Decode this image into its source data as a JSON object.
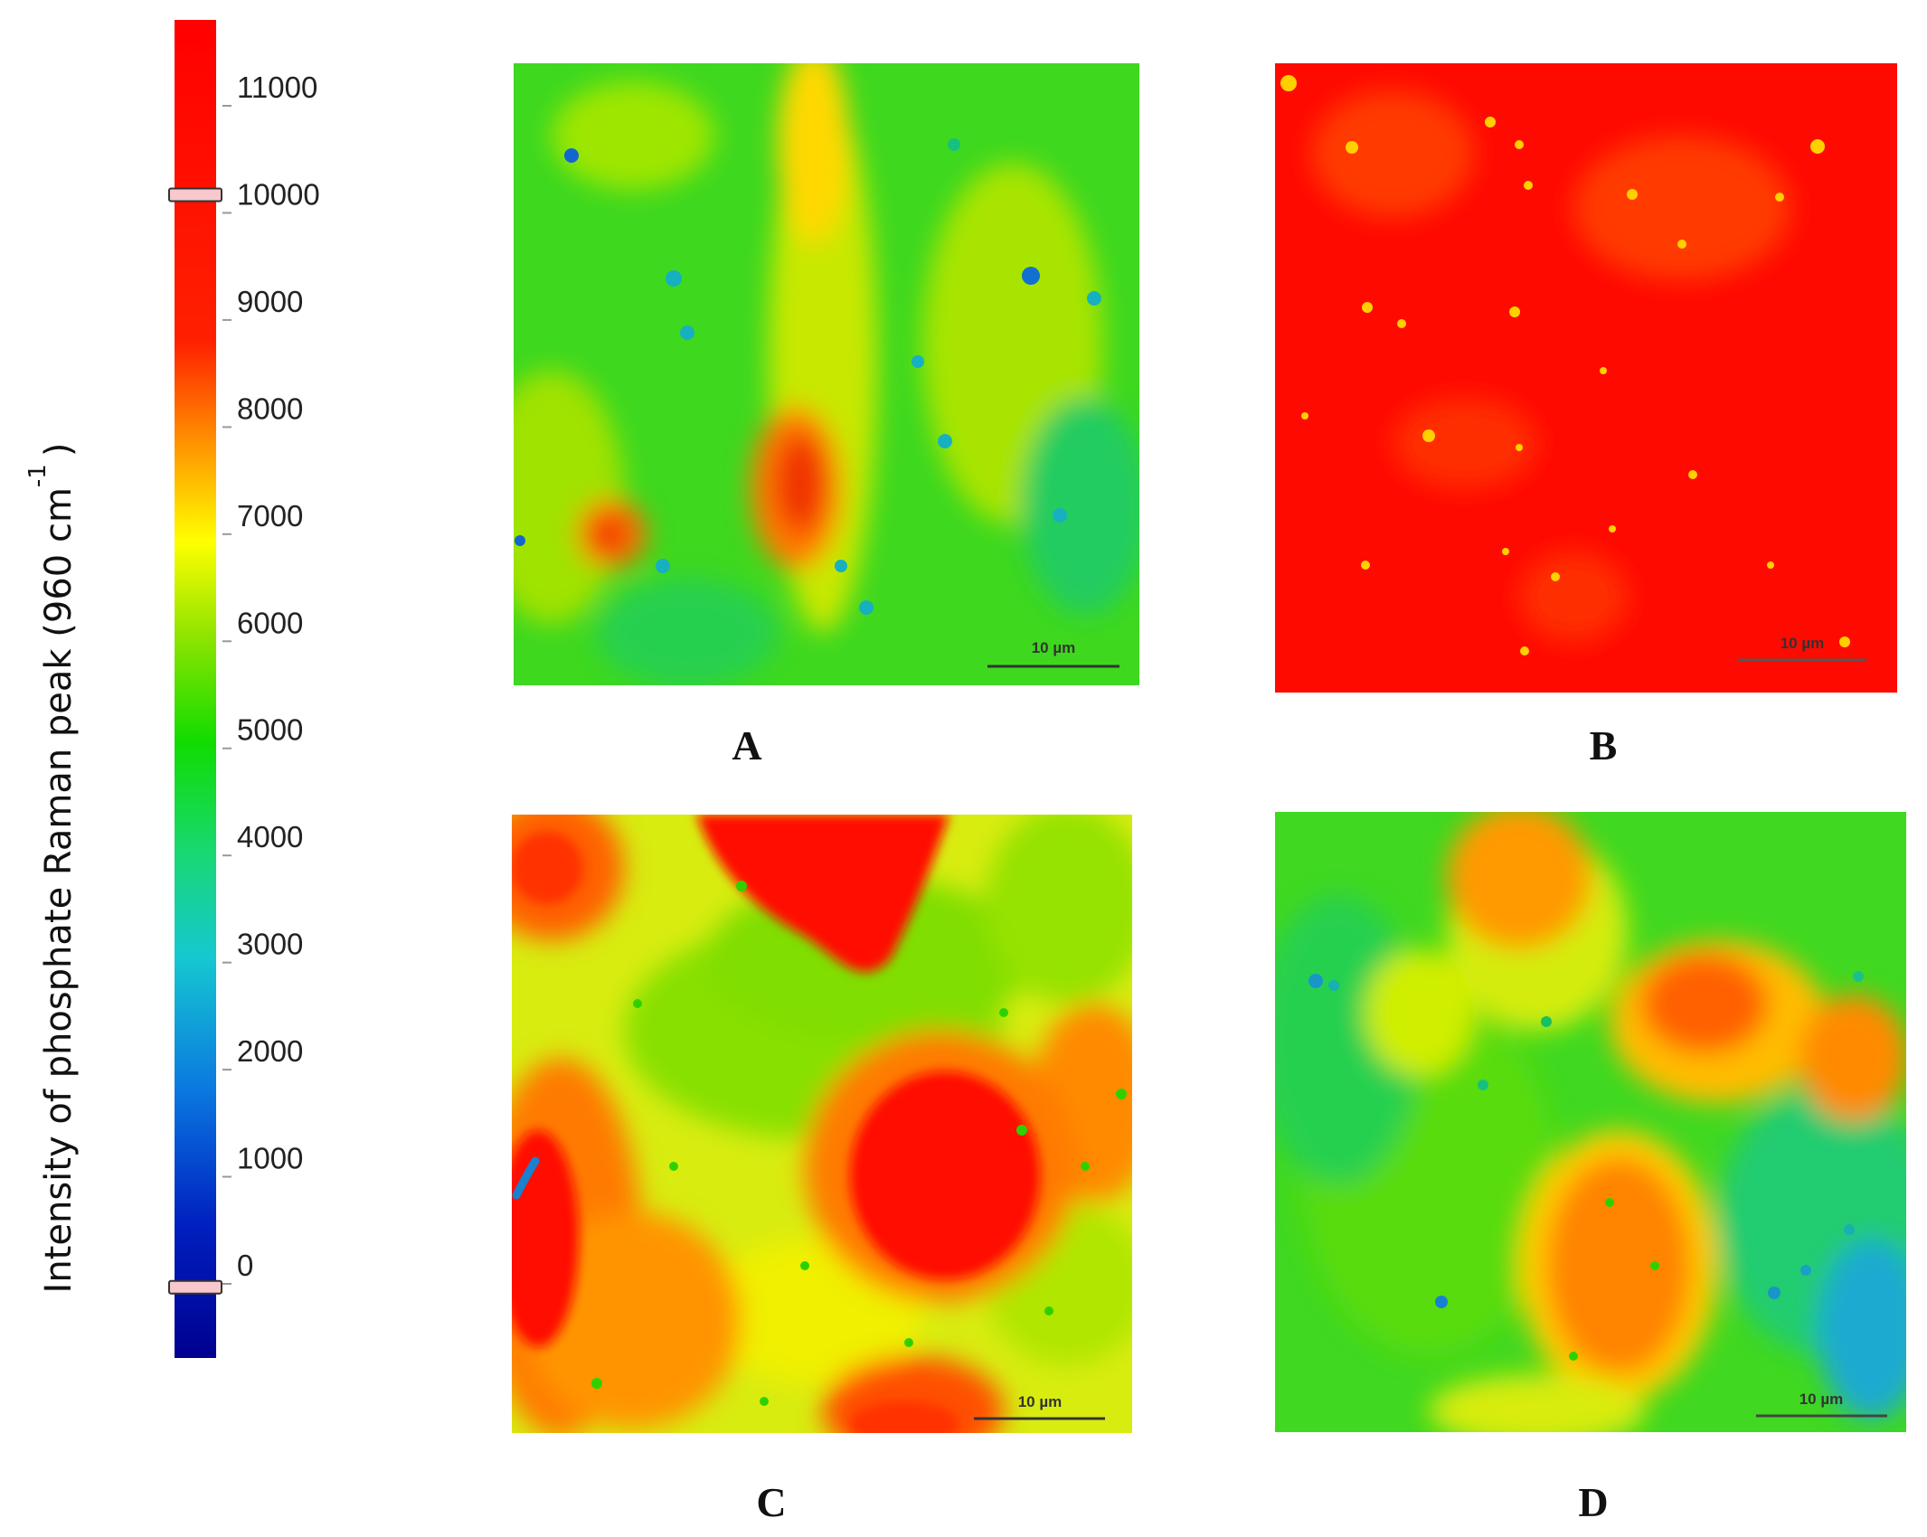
{
  "chart_data": {
    "type": "heatmap",
    "colorbar": {
      "label": "Intensity of phosphate Raman peak (960 cm",
      "label_superscript": "-1",
      "label_close": ")",
      "ticks": [
        11000,
        10000,
        9000,
        8000,
        7000,
        6000,
        5000,
        4000,
        3000,
        2000,
        1000,
        0
      ],
      "tick_labels": [
        "11000",
        "10000",
        "9000",
        "8000",
        "7000",
        "6000",
        "5000",
        "4000",
        "3000",
        "2000",
        "1000",
        "0"
      ],
      "range": [
        -800,
        11600
      ],
      "sliders": [
        10000,
        -200
      ],
      "colormap": [
        "#00009a",
        "#0033cc",
        "#0a8ae0",
        "#1ad1c8",
        "#18d870",
        "#18e000",
        "#7fe000",
        "#ffff00",
        "#ff8800",
        "#ff0000",
        "#ff0000"
      ]
    },
    "panels": [
      {
        "label": "A",
        "scale_bar": "10 µm",
        "dominant_range": [
          4000,
          7000
        ],
        "hotspot_max": 9500
      },
      {
        "label": "B",
        "scale_bar": "10 µm",
        "dominant_range": [
          9500,
          11000
        ],
        "hotspot_max": 11000
      },
      {
        "label": "C",
        "scale_bar": "10 µm",
        "dominant_range": [
          6000,
          11000
        ],
        "hotspot_max": 11000
      },
      {
        "label": "D",
        "scale_bar": "10 µm",
        "dominant_range": [
          3000,
          9000
        ],
        "hotspot_max": 9500
      }
    ]
  }
}
